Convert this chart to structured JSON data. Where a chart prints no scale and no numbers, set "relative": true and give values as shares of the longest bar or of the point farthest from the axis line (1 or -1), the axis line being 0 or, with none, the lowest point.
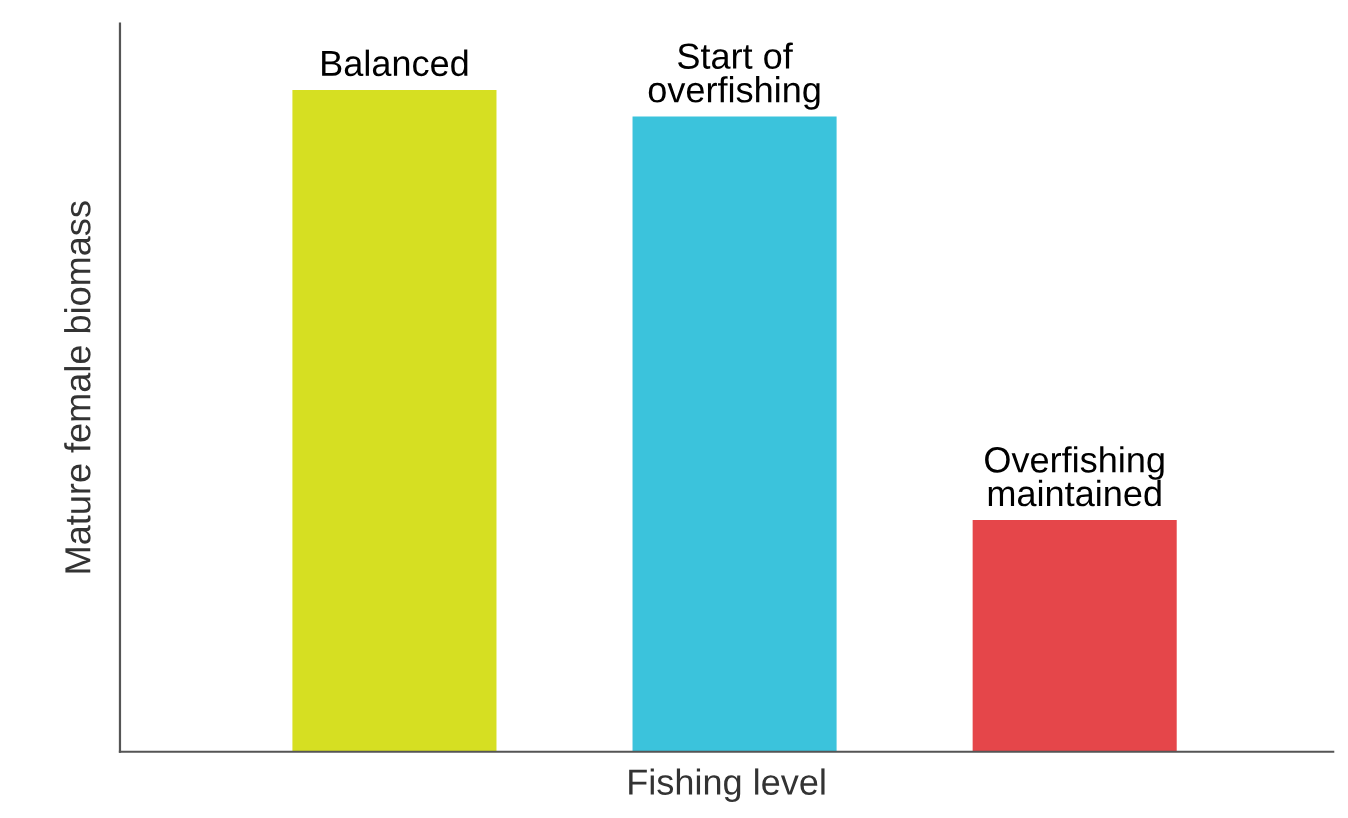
{
  "chart_data": {
    "type": "bar",
    "xlabel": "Fishing level",
    "ylabel": "Mature female biomass",
    "relative": true,
    "categories": [
      "Balanced",
      "Start of\noverfishing",
      "Overfishing\nmaintained"
    ],
    "values": [
      1,
      0.96,
      0.35
    ],
    "colors": [
      "#d6df22",
      "#3bc3dc",
      "#e5464a"
    ]
  }
}
